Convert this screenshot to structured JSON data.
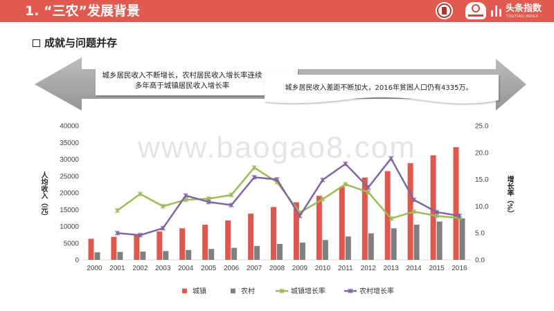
{
  "header": {
    "title": "1. “三农”发展背景",
    "brand_name": "头条指数",
    "brand_sub": "TOUTIAO INDEX",
    "background_color": "#e15a4f",
    "logo_icons": [
      "university-seal-icon",
      "sannong-logo-icon",
      "bar-chart-icon"
    ]
  },
  "section": {
    "bullet_icon": "hollow-square-icon",
    "heading": "成就与问题并存"
  },
  "banner": {
    "arrow_icon": "double-arrow-icon",
    "left_line1": "城乡居民收入不断增长，农村居民收入增长率连续",
    "left_line2": "多年高于城镇居民收入增长率",
    "right_text": "城乡居民收入差距不断加大，2016年贫困人口仍有4335万。"
  },
  "watermark": "www.baogao8.com",
  "chart_data": {
    "type": "bar",
    "categories": [
      "2000",
      "2001",
      "2002",
      "2003",
      "2004",
      "2005",
      "2006",
      "2007",
      "2008",
      "2009",
      "2010",
      "2011",
      "2012",
      "2013",
      "2014",
      "2015",
      "2016"
    ],
    "ylabel": "人均收入（元）",
    "ylim": [
      0,
      40000
    ],
    "yticks": [
      0,
      5000,
      10000,
      15000,
      20000,
      25000,
      30000,
      35000,
      40000
    ],
    "y2label": "增长率（%）",
    "y2lim": [
      0,
      25
    ],
    "y2ticks": [
      "0.0",
      "5.0",
      "10.0",
      "15.0",
      "20.0",
      "25.0"
    ],
    "grid": false,
    "legend": "bottom",
    "series": [
      {
        "name": "城镇",
        "type": "bar",
        "axis": "left",
        "color": "#e0574d",
        "values": [
          6280,
          6860,
          7703,
          8472,
          9422,
          10493,
          11759,
          13786,
          15781,
          17175,
          19109,
          21810,
          24565,
          26467,
          28844,
          31195,
          33616
        ]
      },
      {
        "name": "农村",
        "type": "bar",
        "axis": "left",
        "color": "#7f7f7f",
        "values": [
          2253,
          2366,
          2476,
          2622,
          2936,
          3255,
          3587,
          4140,
          4761,
          5153,
          5919,
          6977,
          7917,
          9430,
          10489,
          11422,
          12363
        ]
      },
      {
        "name": "城镇增长率",
        "type": "line",
        "axis": "right",
        "color": "#9bbb59",
        "values": [
          null,
          9.2,
          12.3,
          10.0,
          11.2,
          11.4,
          12.1,
          17.2,
          14.5,
          8.8,
          11.3,
          14.1,
          12.6,
          7.7,
          9.0,
          8.2,
          7.8
        ]
      },
      {
        "name": "农村增长率",
        "type": "line",
        "axis": "right",
        "color": "#8064a2",
        "values": [
          null,
          5.0,
          4.6,
          5.9,
          12.0,
          10.8,
          10.2,
          15.4,
          15.0,
          8.2,
          14.9,
          17.9,
          13.5,
          18.9,
          11.2,
          8.9,
          8.2
        ]
      }
    ]
  }
}
